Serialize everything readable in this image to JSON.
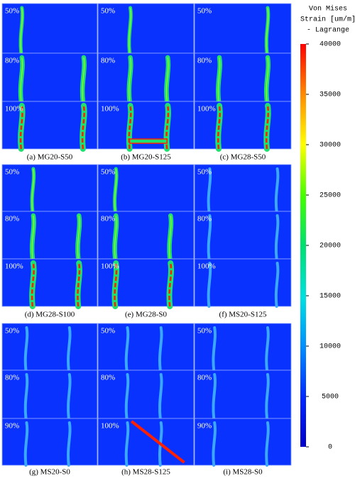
{
  "figures": [
    {
      "caption": "(a) MG20-S50",
      "stages": [
        "50%",
        "80%",
        "100%"
      ]
    },
    {
      "caption": "(b) MG20-S125",
      "stages": [
        "50%",
        "80%",
        "100%"
      ]
    },
    {
      "caption": "(c) MG28-S50",
      "stages": [
        "50%",
        "80%",
        "100%"
      ]
    },
    {
      "caption": "(d) MG28-S100",
      "stages": [
        "50%",
        "80%",
        "100%"
      ]
    },
    {
      "caption": "(e) MG28-S0",
      "stages": [
        "50%",
        "80%",
        "100%"
      ]
    },
    {
      "caption": "(f) MS20-S125",
      "stages": [
        "50%",
        "80%",
        "100%"
      ]
    },
    {
      "caption": "(g) MS20-S0",
      "stages": [
        "50%",
        "80%",
        "90%"
      ]
    },
    {
      "caption": "(h) MS28-S125",
      "stages": [
        "50%",
        "80%",
        "100%"
      ]
    },
    {
      "caption": "(i) MS28-S0",
      "stages": [
        "50%",
        "80%",
        "90%"
      ]
    }
  ],
  "colorbar": {
    "title": [
      "Von Mises",
      "Strain [um/m]",
      "- Lagrange"
    ],
    "lim": [
      0,
      40000
    ],
    "ticks": [
      0,
      5000,
      10000,
      15000,
      20000,
      25000,
      30000,
      35000,
      40000
    ]
  }
}
